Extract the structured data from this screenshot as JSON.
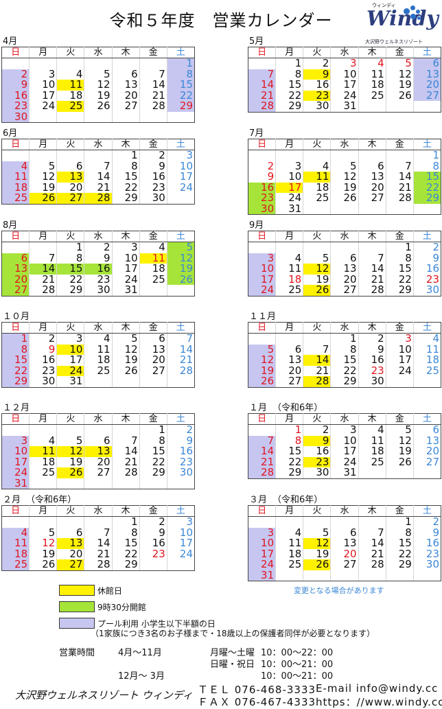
{
  "title": "令和５年度　営業カレンダー",
  "logo": {
    "furigana": "ウィンディ",
    "wordmark": "Windy",
    "sub": "大沢野ウェルネスリゾート"
  },
  "weekdays": [
    "日",
    "月",
    "火",
    "水",
    "木",
    "金",
    "土"
  ],
  "colors": {
    "closed": "#fff200",
    "open_930": "#a6e43a",
    "pool_half": "#c6c6f0",
    "sunday_holiday": "#e0141e",
    "saturday": "#3a86d6"
  },
  "months": [
    {
      "label": "4月",
      "note": "",
      "start": 6,
      "days": 30,
      "red": [
        2,
        9,
        16,
        23,
        29,
        30
      ],
      "yellow": [
        11,
        25
      ],
      "green": [],
      "purple": [
        1,
        2,
        8,
        9,
        15,
        16,
        22,
        23,
        29,
        30
      ]
    },
    {
      "label": "5月",
      "note": "",
      "start": 1,
      "days": 31,
      "red": [
        3,
        4,
        5,
        7,
        14,
        21,
        28
      ],
      "yellow": [
        9,
        23
      ],
      "green": [],
      "purple": [
        6,
        7,
        13,
        14,
        20,
        21,
        27,
        28
      ]
    },
    {
      "label": "6月",
      "note": "",
      "start": 4,
      "days": 30,
      "red": [
        4,
        11,
        18,
        25
      ],
      "yellow": [
        13,
        26,
        27,
        28
      ],
      "green": [],
      "purple": [
        4,
        11,
        18,
        25
      ]
    },
    {
      "label": "7月",
      "note": "",
      "start": 6,
      "days": 31,
      "red": [
        2,
        9,
        16,
        17,
        23,
        30
      ],
      "yellow": [
        11,
        17
      ],
      "green": [
        15,
        16,
        22,
        23,
        29,
        30
      ],
      "purple": []
    },
    {
      "label": "8月",
      "note": "",
      "start": 2,
      "days": 31,
      "red": [
        6,
        11,
        13,
        20,
        27
      ],
      "yellow": [
        11
      ],
      "green": [
        5,
        6,
        12,
        13,
        14,
        15,
        16,
        19,
        20,
        26,
        27
      ],
      "purple": []
    },
    {
      "label": "9月",
      "note": "",
      "start": 5,
      "days": 30,
      "red": [
        3,
        10,
        17,
        18,
        23,
        24
      ],
      "yellow": [
        12,
        26
      ],
      "green": [],
      "purple": [
        3,
        10,
        17,
        24
      ]
    },
    {
      "label": "１０月",
      "note": "",
      "start": 0,
      "days": 31,
      "red": [
        1,
        8,
        9,
        15,
        22,
        29
      ],
      "yellow": [
        10,
        24
      ],
      "green": [],
      "purple": [
        1,
        8,
        15,
        22,
        29
      ]
    },
    {
      "label": "１１月",
      "note": "",
      "start": 3,
      "days": 30,
      "red": [
        3,
        5,
        12,
        19,
        23,
        26
      ],
      "yellow": [
        14,
        28
      ],
      "green": [],
      "purple": [
        5,
        12,
        19,
        26
      ]
    },
    {
      "label": "１２月",
      "note": "",
      "start": 5,
      "days": 31,
      "red": [
        3,
        10,
        17,
        24,
        31
      ],
      "yellow": [
        11,
        12,
        13,
        26
      ],
      "green": [],
      "purple": [
        3,
        10,
        17,
        24,
        31
      ]
    },
    {
      "label": "１月",
      "note": "（令和6年）",
      "start": 1,
      "days": 31,
      "red": [
        1,
        7,
        8,
        14,
        21,
        28
      ],
      "yellow": [
        9,
        23
      ],
      "green": [],
      "purple": [
        7,
        14,
        21,
        28
      ]
    },
    {
      "label": "２月",
      "note": "（令和6年）",
      "start": 4,
      "days": 29,
      "red": [
        4,
        11,
        12,
        18,
        23,
        25
      ],
      "yellow": [
        13,
        27
      ],
      "green": [],
      "purple": [
        4,
        11,
        18,
        25
      ]
    },
    {
      "label": "３月",
      "note": "（令和6年）",
      "start": 5,
      "days": 31,
      "red": [
        3,
        10,
        17,
        20,
        24,
        31
      ],
      "yellow": [
        12,
        26
      ],
      "green": [],
      "purple": [
        3,
        10,
        17,
        24,
        31
      ]
    }
  ],
  "legend": [
    {
      "label": "休館日"
    },
    {
      "label": "9時30分開館"
    },
    {
      "label": "プール利用 小学生以下半額の日"
    }
  ],
  "legend_note": "（1家族につき3名のお子様まで・18歳以上の保護者同伴が必要となります）",
  "changes_note": "変更となる場合があります",
  "hours": {
    "label": "営業時間",
    "period1": "4月～11月",
    "weekday_label": "月曜～土曜",
    "weekday_time": "10：00～22：00",
    "holiday_label": "日曜・祝日",
    "holiday_time": "10：00～21：00",
    "period2": "12月～ 3月",
    "winter_time": "10：00～21：00"
  },
  "footer": {
    "name": "大沢野ウェルネスリゾート ウィンディ",
    "tel": "ＴＥＬ 076-468-3333",
    "fax": "ＦＡＸ 076-467-4333",
    "email": "E-mail info@windy.cc",
    "url": "https：//www.windy.cc"
  }
}
